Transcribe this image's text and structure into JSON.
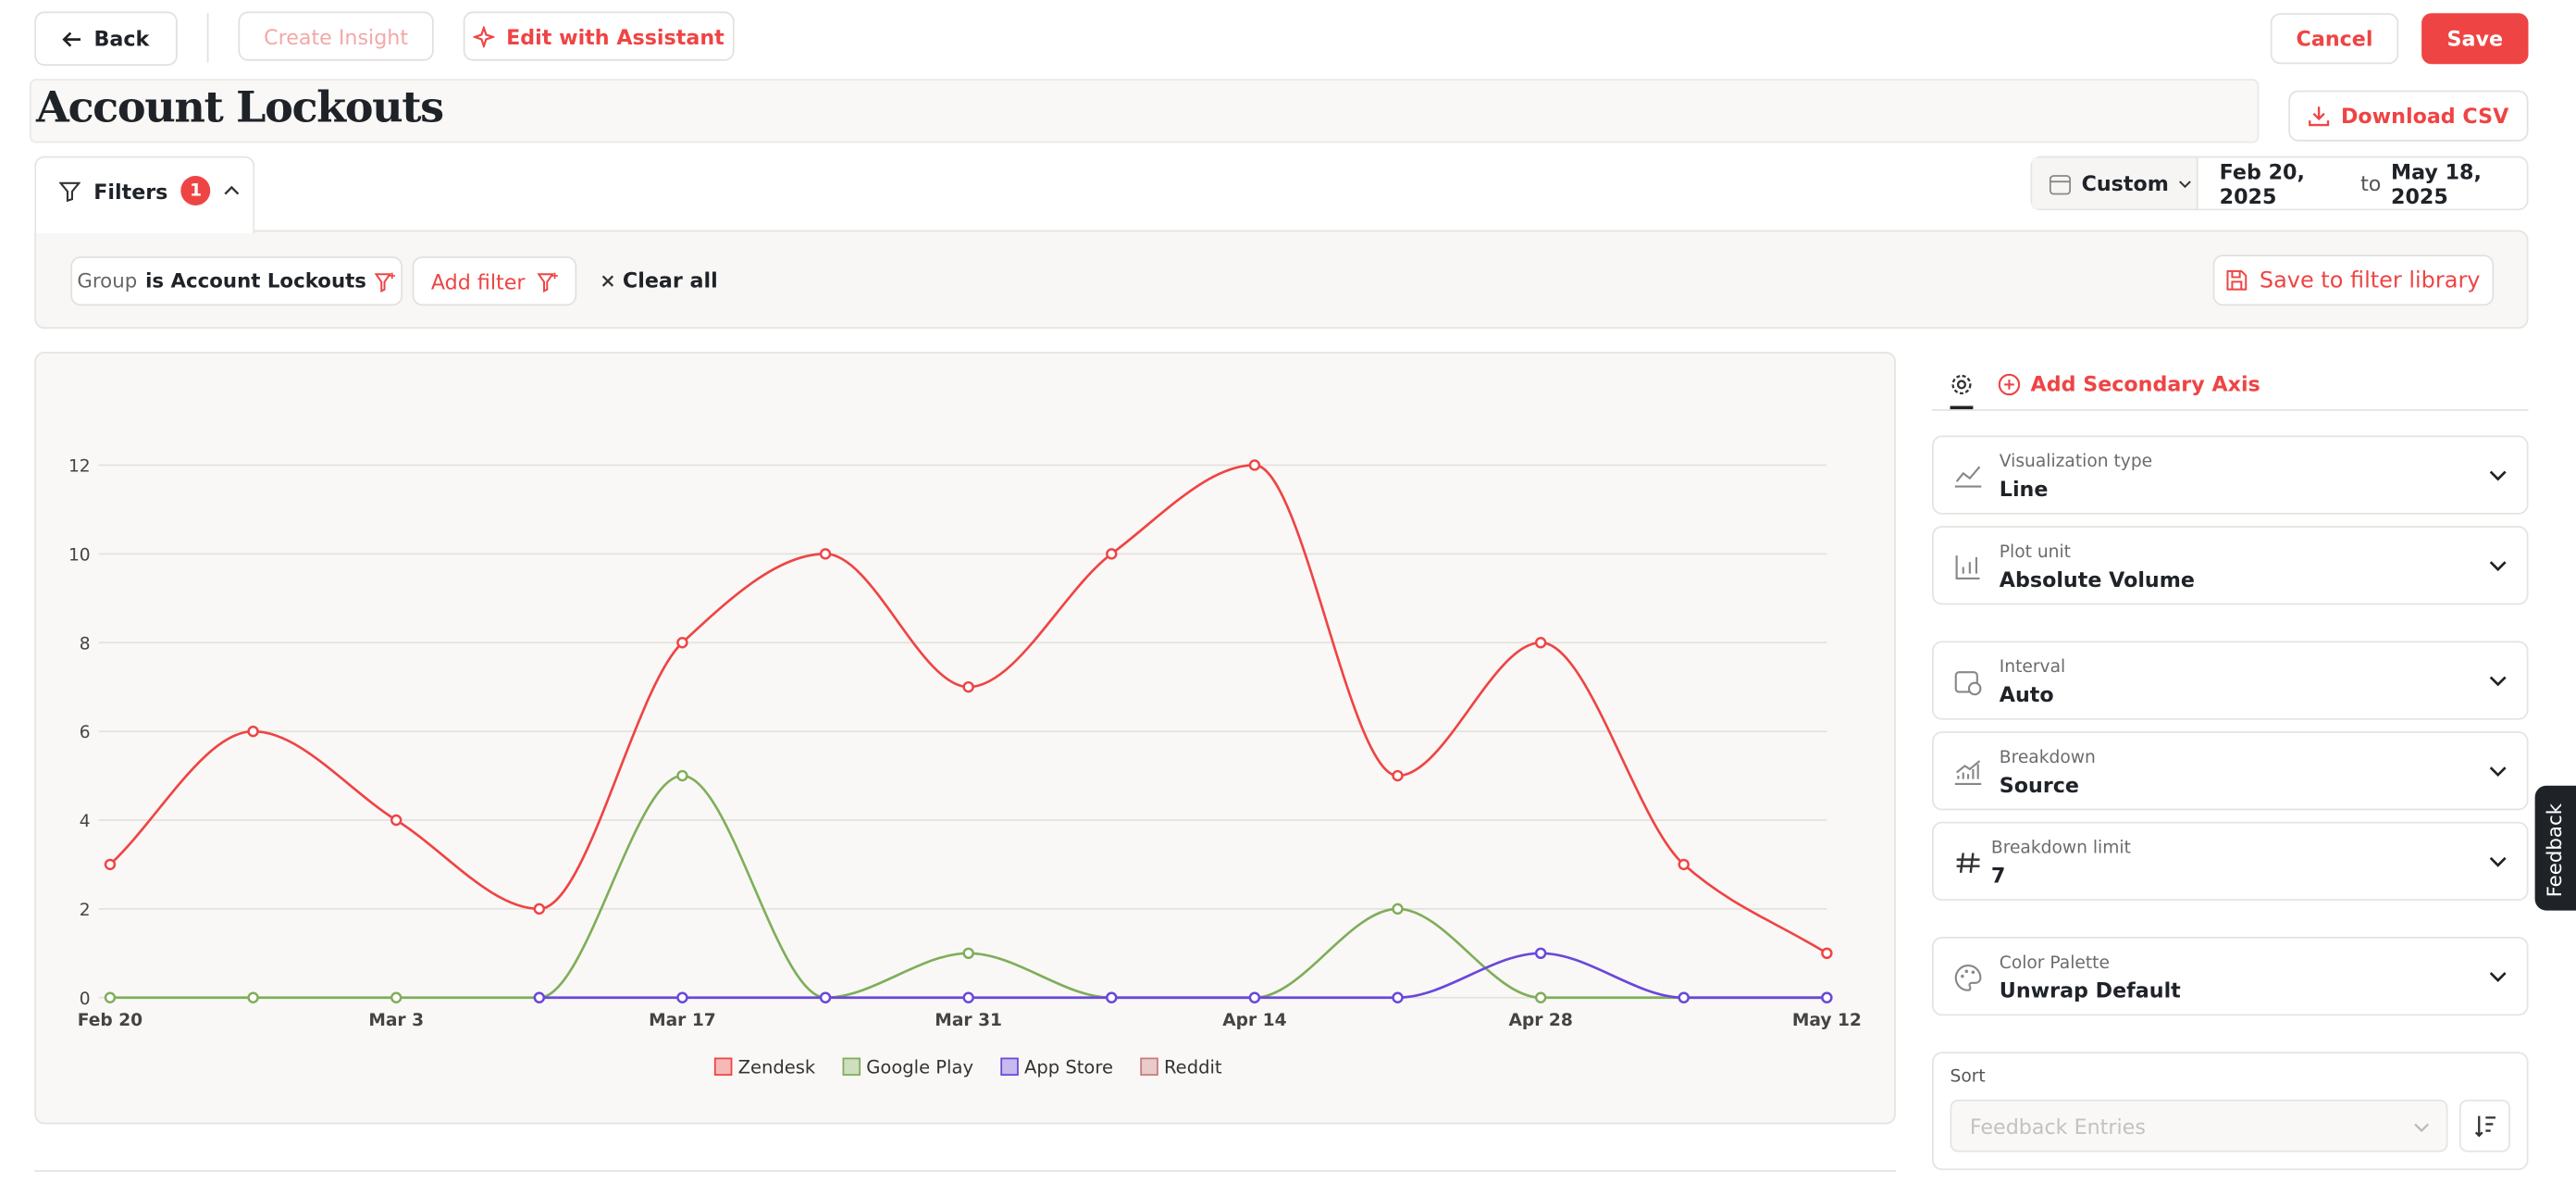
{
  "ui": {
    "back": "Back",
    "create_insight": "Create Insight",
    "edit_with_assistant": "Edit with Assistant",
    "cancel": "Cancel",
    "save": "Save",
    "title": "Account Lockouts",
    "download_csv": "Download CSV",
    "filters": "Filters",
    "filter_count": 1,
    "date_mode": "Custom",
    "date_from": "Feb 20, 2025",
    "date_to_word": "to",
    "date_to": "May 18, 2025",
    "filter_field": "Group",
    "filter_condition": "is Account Lockouts",
    "add_filter": "Add filter",
    "clear_all": "Clear all",
    "save_filter_library": "Save to filter library",
    "add_secondary_axis": "Add Secondary Axis",
    "settings": [
      {
        "label": "Visualization type",
        "value": "Line"
      },
      {
        "label": "Plot unit",
        "value": "Absolute Volume"
      },
      {
        "label": "Interval",
        "value": "Auto"
      },
      {
        "label": "Breakdown",
        "value": "Source"
      },
      {
        "label": "Breakdown limit",
        "value": 7
      },
      {
        "label": "Color Palette",
        "value": "Unwrap Default"
      }
    ],
    "sort_label": "Sort",
    "sort_placeholder": "Feedback Entries",
    "feedback": "Feedback"
  },
  "chart_data": {
    "type": "line",
    "categories": [
      "Feb 20",
      null,
      "Mar 3",
      null,
      "Mar 17",
      null,
      "Mar 31",
      null,
      "Apr 14",
      null,
      "Apr 28",
      null,
      "May 12"
    ],
    "series": [
      {
        "name": "Zendesk",
        "color": "#ef4444",
        "values": [
          3,
          6,
          4,
          2,
          8,
          10,
          7,
          10,
          12,
          5,
          8,
          3,
          1
        ]
      },
      {
        "name": "Google Play",
        "color": "#7fae5a",
        "values": [
          0,
          0,
          0,
          0,
          5,
          0,
          1,
          0,
          0,
          2,
          0,
          0,
          0
        ]
      },
      {
        "name": "App Store",
        "color": "#6a47db",
        "values": [
          null,
          null,
          null,
          0,
          0,
          0,
          0,
          0,
          0,
          0,
          1,
          0,
          0
        ]
      },
      {
        "name": "Reddit",
        "color": "#c97b7b",
        "values": [
          null,
          null,
          null,
          null,
          null,
          null,
          null,
          null,
          null,
          null,
          null,
          null,
          null
        ]
      }
    ],
    "ylim": [
      0,
      12
    ],
    "yticks": [
      0,
      2,
      4,
      6,
      8,
      10,
      12
    ],
    "grid": true,
    "legend": "bottom"
  }
}
